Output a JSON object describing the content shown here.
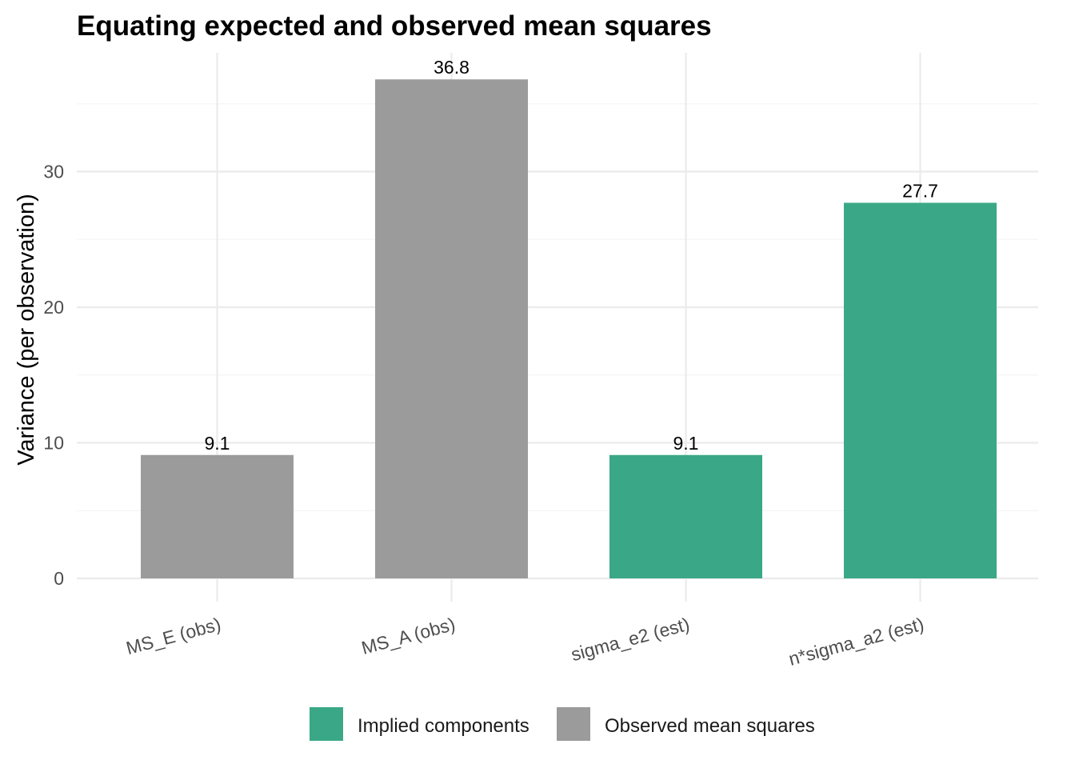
{
  "chart_data": {
    "type": "bar",
    "title": "Equating expected and observed mean squares",
    "xlabel": "",
    "ylabel": "Variance (per observation)",
    "ylim": [
      0,
      38.6
    ],
    "yticks": [
      0,
      10,
      20,
      30
    ],
    "categories": [
      "MS_E (obs)",
      "MS_A (obs)",
      "sigma_e2 (est)",
      "n*sigma_a2 (est)"
    ],
    "values": [
      9.1,
      36.8,
      9.1,
      27.7
    ],
    "data_labels": [
      "9.1",
      "36.8",
      "9.1",
      "27.7"
    ],
    "groups": [
      "Observed mean squares",
      "Observed mean squares",
      "Implied components",
      "Implied components"
    ],
    "legend": {
      "position": "bottom",
      "entries": [
        {
          "name": "Implied components",
          "color": "#3aa886"
        },
        {
          "name": "Observed mean squares",
          "color": "#9b9b9b"
        }
      ]
    },
    "grid": true,
    "x_tick_rotation_deg": -15
  }
}
